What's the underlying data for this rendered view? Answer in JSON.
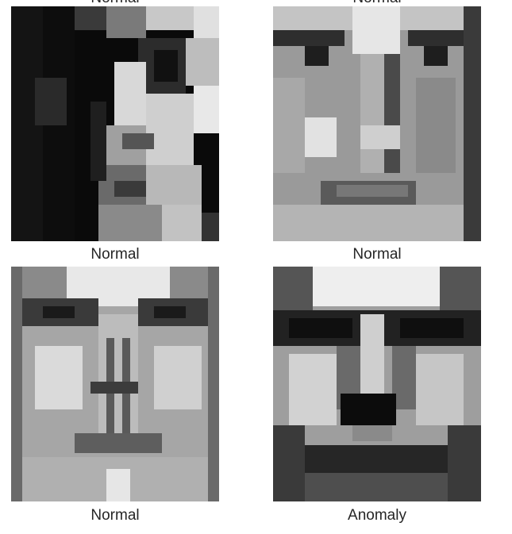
{
  "grid": {
    "top_captions": [
      {
        "label": "Normal"
      },
      {
        "label": "Normal"
      }
    ],
    "panels": [
      {
        "label": "Normal",
        "description": "grayscale face image, strong side lighting"
      },
      {
        "label": "Normal",
        "description": "grayscale face image, flat frontal lighting"
      },
      {
        "label": "Normal",
        "description": "grayscale face image"
      },
      {
        "label": "Anomaly",
        "description": "grayscale face image"
      }
    ]
  },
  "colors": {
    "background": "#ffffff",
    "caption_text": "#262626"
  }
}
